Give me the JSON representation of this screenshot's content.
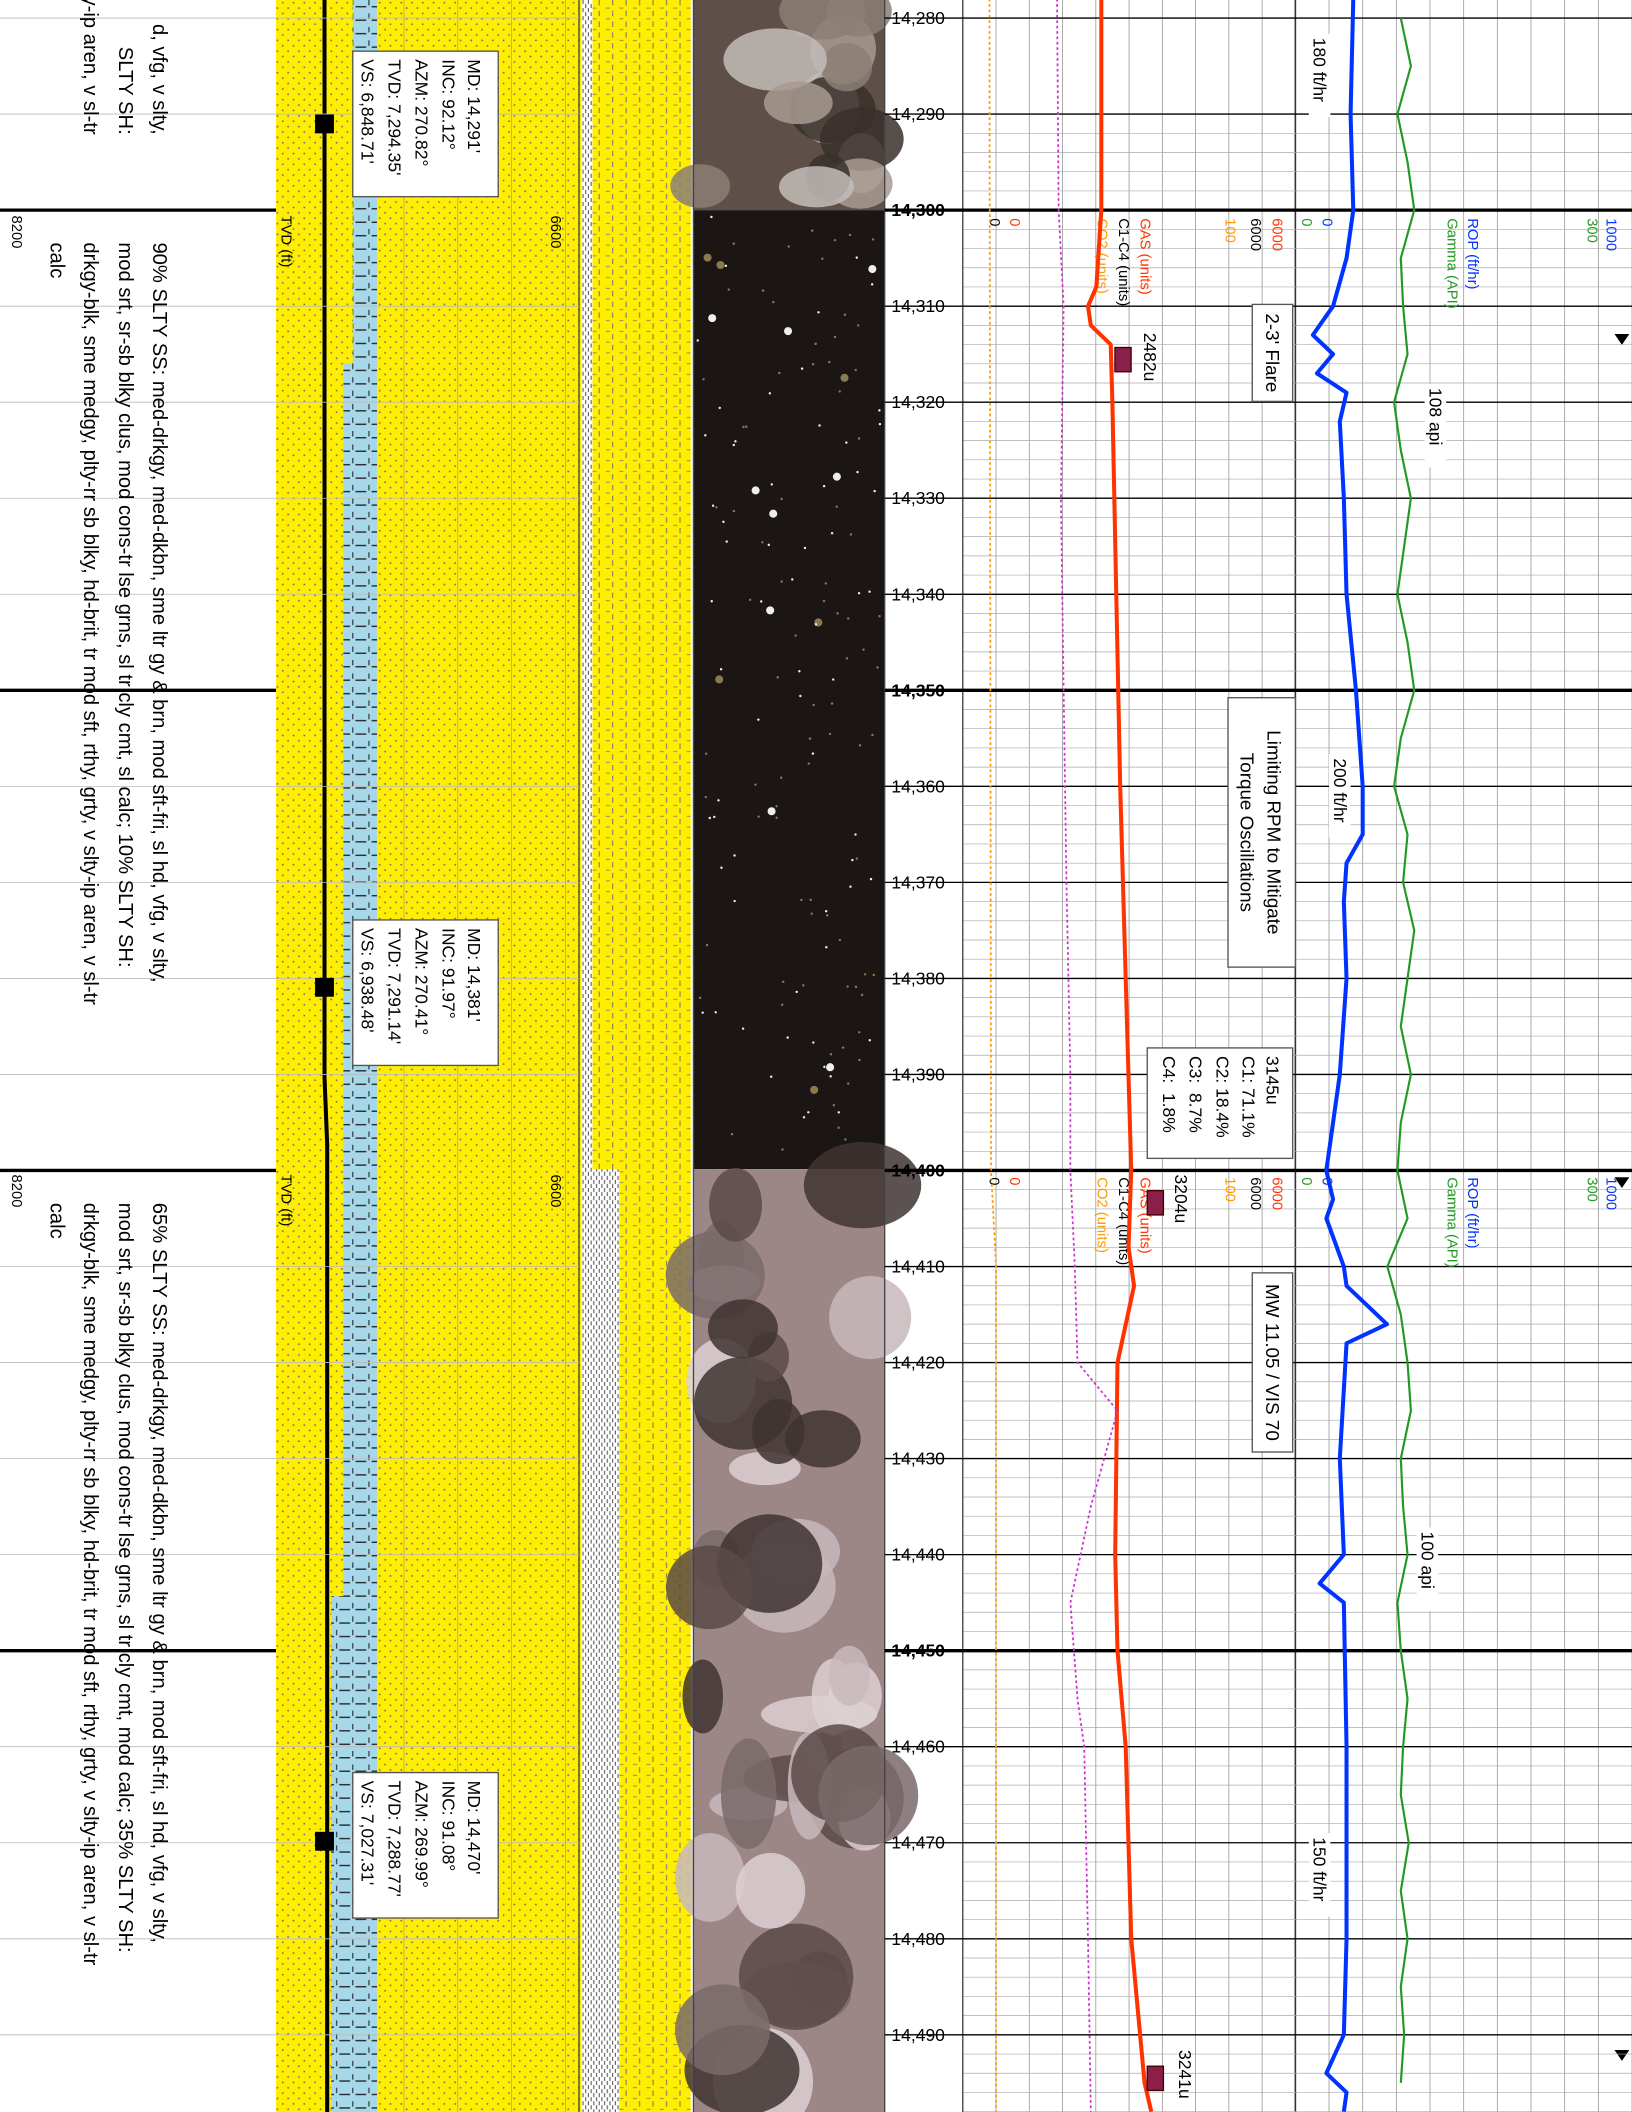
{
  "depth_ticks": [
    {
      "value": 14280,
      "label": "14,280"
    },
    {
      "value": 14290,
      "label": "14,290"
    },
    {
      "value": 14300,
      "label": "14,300"
    },
    {
      "value": 14310,
      "label": "14,310"
    },
    {
      "value": 14320,
      "label": "14,320"
    },
    {
      "value": 14330,
      "label": "14,330"
    },
    {
      "value": 14340,
      "label": "14,340"
    },
    {
      "value": 14350,
      "label": "14,350"
    },
    {
      "value": 14360,
      "label": "14,360"
    },
    {
      "value": 14370,
      "label": "14,370"
    },
    {
      "value": 14380,
      "label": "14,380"
    },
    {
      "value": 14390,
      "label": "14,390"
    },
    {
      "value": 14400,
      "label": "14,400"
    },
    {
      "value": 14410,
      "label": "14,410"
    },
    {
      "value": 14420,
      "label": "14,420"
    },
    {
      "value": 14430,
      "label": "14,430"
    },
    {
      "value": 14440,
      "label": "14,440"
    },
    {
      "value": 14450,
      "label": "14,450"
    },
    {
      "value": 14460,
      "label": "14,460"
    },
    {
      "value": 14470,
      "label": "14,470"
    },
    {
      "value": 14480,
      "label": "14,480"
    },
    {
      "value": 14490,
      "label": "14,490"
    }
  ],
  "descriptions": [
    [
      "d, vfg, v slty,",
      "SLTY SH:",
      "ty-ip aren, v sl-tr"
    ],
    [
      "90% SLTY SS: med-drkgy, med-dkbn, sme ltr gy & brn, mod sft-fri, sl hd, vfg, v slty,",
      "mod srt, sr-sb blky clus, mod cons-tr lse grns, sl tr cly cmt, sl calc; 10% SLTY SH:",
      "drkgy-blk, sme medgy, plty-rr sb blky, hd-brit, tr mod sft, rthy, grty, v slty-ip aren, v sl-tr",
      "calc"
    ],
    [
      "65% SLTY SS: med-drkgy, med-dkbn, sme ltr gy & brn, mod sft-fri, sl hd, vfg, v slty,",
      "mod srt, sr-sb blky clus, mod cons-tr lse grns, sl tr cly cmt, mod calc; 35% SLTY SH:",
      "drkgy-blk, sme medgy, plty-rr sb blky, hd-brit, tr mod sft, rthy, grty, v slty-ip aren, v sl-tr",
      "calc"
    ]
  ],
  "surveys": [
    [
      "MD: 14,291'",
      "INC: 92.12°",
      "AZM: 270.82°",
      "TVD: 7,294.35'",
      "VS: 6,848.71'"
    ],
    [
      "MD: 14,381'",
      "INC: 91.97°",
      "AZM: 270.41°",
      "TVD: 7,291.14'",
      "VS: 6,938.48'"
    ],
    [
      "MD: 14,470'",
      "INC: 91.08°",
      "AZM: 269.99°",
      "TVD: 7,288.77'",
      "VS: 7,027.31'"
    ]
  ],
  "tvd_header": {
    "title": "TVD (ft)",
    "left": "8200",
    "right": "6600"
  },
  "curves": [
    {
      "name": "GAS (units)",
      "color": "#ff3300",
      "xlim": [
        0,
        6000
      ],
      "depths": [
        14278,
        14300,
        14308,
        14310,
        14312,
        14314,
        14320,
        14340,
        14360,
        14380,
        14400,
        14408,
        14412,
        14420,
        14440,
        14450,
        14460,
        14480,
        14495,
        14498
      ],
      "values": [
        2500,
        2500,
        2410,
        2260,
        2310,
        2670,
        2700,
        2770,
        2840,
        2940,
        3040,
        2990,
        3090,
        2790,
        2750,
        2790,
        2940,
        3040,
        3280,
        3400
      ]
    },
    {
      "name": "C1-C4 (units)",
      "color": "#d030d0",
      "xlim": [
        0,
        6000
      ],
      "depths": [
        14278,
        14300,
        14310,
        14330,
        14350,
        14370,
        14390,
        14400,
        14410,
        14420,
        14425,
        14435,
        14445,
        14455,
        14460,
        14480,
        14498
      ],
      "values": [
        1700,
        1730,
        1820,
        1770,
        1820,
        1870,
        1940,
        1940,
        2020,
        2070,
        2790,
        2310,
        1940,
        2070,
        2190,
        2260,
        2310
      ]
    },
    {
      "name": "CO2 (units)",
      "color": "#ff9900",
      "xlim": [
        0,
        100
      ],
      "depths": [
        14278,
        14400,
        14410,
        14498
      ],
      "values": [
        8,
        8.5,
        10,
        10
      ]
    },
    {
      "name": "ROP (ft/hr)",
      "color": "#0033ff",
      "xlim": [
        0,
        1000
      ],
      "depths": [
        14278,
        14290,
        14300,
        14305,
        14310,
        14313,
        14315,
        14317,
        14319,
        14322,
        14330,
        14340,
        14350,
        14360,
        14365,
        14368,
        14372,
        14380,
        14390,
        14400,
        14403,
        14405,
        14410,
        14412,
        14416,
        14418,
        14430,
        14440,
        14443,
        14445,
        14460,
        14480,
        14490,
        14494,
        14496,
        14498
      ],
      "values": [
        172,
        164,
        172,
        152,
        112,
        52,
        112,
        64,
        152,
        132,
        144,
        152,
        180,
        200,
        200,
        152,
        144,
        152,
        132,
        92,
        112,
        92,
        144,
        152,
        272,
        152,
        132,
        144,
        72,
        144,
        152,
        152,
        144,
        92,
        152,
        144
      ]
    },
    {
      "name": "Gamma (API)",
      "color": "#229922",
      "xlim": [
        0,
        300
      ],
      "depths": [
        14280,
        14285,
        14290,
        14295,
        14300,
        14305,
        14310,
        14315,
        14320,
        14325,
        14330,
        14335,
        14340,
        14345,
        14350,
        14355,
        14360,
        14365,
        14370,
        14375,
        14380,
        14385,
        14390,
        14395,
        14400,
        14405,
        14410,
        14415,
        14420,
        14425,
        14430,
        14435,
        14440,
        14445,
        14450,
        14455,
        14460,
        14465,
        14470,
        14475,
        14480,
        14485,
        14490,
        14495
      ],
      "values": [
        94,
        103,
        91,
        100,
        106,
        94,
        96,
        100,
        88,
        94,
        103,
        97,
        91,
        100,
        106,
        94,
        88,
        100,
        96,
        106,
        100,
        94,
        103,
        94,
        91,
        100,
        82,
        94,
        100,
        103,
        94,
        96,
        100,
        91,
        94,
        100,
        96,
        94,
        101,
        94,
        100,
        94,
        97,
        94
      ]
    }
  ],
  "annotations": [
    [
      "2-3' Flare"
    ],
    [
      "Limiting RPM to Mitigate",
      "Torque Oscillations"
    ],
    [
      "MW 11.05 / VIS 70"
    ]
  ],
  "gas_composition": [
    "3145u",
    "C1: 71.1%",
    "C2: 18.4%",
    "C3:  8.7%",
    "C4:  1.8%"
  ],
  "rate_labels": [
    "180 ft/hr",
    "200 ft/hr",
    "150 ft/hr",
    "108 api",
    "100 api"
  ],
  "gas_peaks": [
    "2482u",
    "3204u",
    "3241u"
  ]
}
